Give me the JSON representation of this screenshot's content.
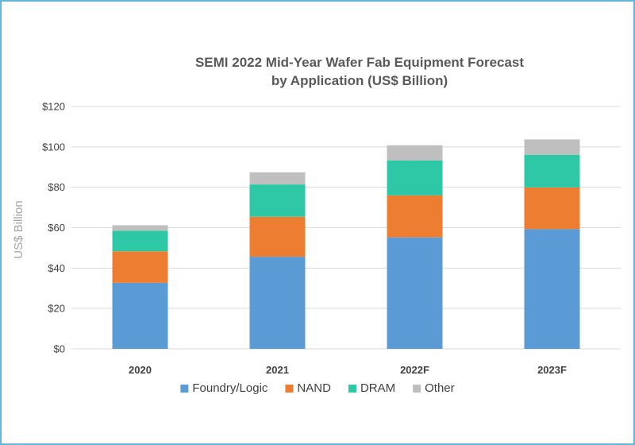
{
  "colors": {
    "foundry_logic": "#5b9bd5",
    "nand": "#ed7d31",
    "dram": "#2ec8a6",
    "other": "#bfbfbf",
    "gridline": "#d9d9d9",
    "frame_border": "#63b6d7"
  },
  "chart_data": {
    "type": "bar",
    "stacked": true,
    "title": [
      "SEMI 2022 Mid-Year Wafer Fab Equipment Forecast",
      "by Application (US$ Billion)"
    ],
    "xlabel": "",
    "ylabel": "US$ Billion",
    "ylim": [
      0,
      120
    ],
    "y_ticks": [
      0,
      20,
      40,
      60,
      80,
      100,
      120
    ],
    "y_tick_labels": [
      "$0",
      "$20",
      "$40",
      "$60",
      "$80",
      "$100",
      "$120"
    ],
    "categories": [
      "2020",
      "2021",
      "2022F",
      "2023F"
    ],
    "grid": true,
    "legend_position": "bottom",
    "series": [
      {
        "name": "Foundry/Logic",
        "color": "#5b9bd5",
        "values": [
          32.7,
          45.6,
          55.2,
          59.3
        ]
      },
      {
        "name": "NAND",
        "color": "#ed7d31",
        "values": [
          15.6,
          19.8,
          20.8,
          20.6
        ]
      },
      {
        "name": "DRAM",
        "color": "#2ec8a6",
        "values": [
          10.2,
          16.0,
          17.3,
          16.2
        ]
      },
      {
        "name": "Other",
        "color": "#bfbfbf",
        "values": [
          2.7,
          6.0,
          7.5,
          7.6
        ]
      }
    ]
  }
}
